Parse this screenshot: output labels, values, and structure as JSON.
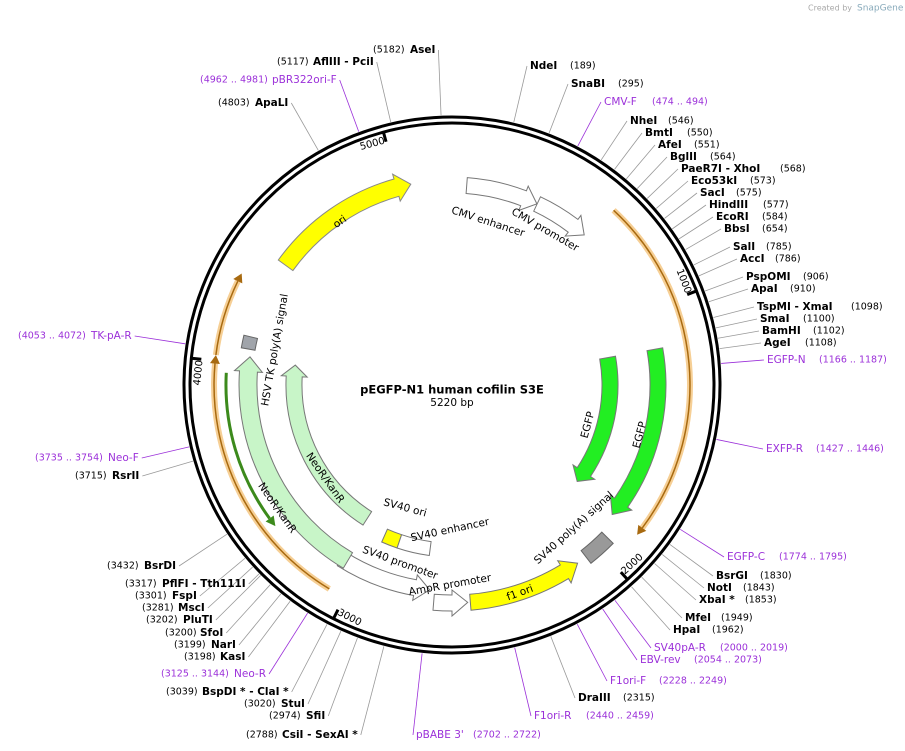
{
  "header": {
    "created_by": "Created by",
    "brand": "SnapGene"
  },
  "map": {
    "name": "pEGFP-N1 human cofilin S3E",
    "length": {
      "value": 5220,
      "label": "5220 bp"
    },
    "ruler": [
      1000,
      2000,
      3000,
      4000,
      5000
    ]
  },
  "features": [
    {
      "label": "ori"
    },
    {
      "label": "CMV enhancer"
    },
    {
      "label": "CMV promoter"
    },
    {
      "label": "EGFP"
    },
    {
      "label": "EGFP"
    },
    {
      "label": "SV40 poly(A) signal"
    },
    {
      "label": "f1 ori"
    },
    {
      "label": "AmpR promoter"
    },
    {
      "label": "SV40 promoter"
    },
    {
      "label": "SV40 ori"
    },
    {
      "label": "SV40 enhancer"
    },
    {
      "label": "NeoR/KanR"
    },
    {
      "label": "NeoR/KanR"
    },
    {
      "label": "HSV TK poly(A) signal"
    }
  ],
  "enzymes": [
    {
      "name": "AseI",
      "position": "(5182)"
    },
    {
      "name": "AflIII  - PciI",
      "position": "(5117)"
    },
    {
      "name": "ApaLI",
      "position": "(4803)"
    },
    {
      "name": "NdeI",
      "position": "(189)"
    },
    {
      "name": "SnaBI",
      "position": "(295)"
    },
    {
      "name": "NheI",
      "position": "(546)"
    },
    {
      "name": "BmtI",
      "position": "(550)"
    },
    {
      "name": "AfeI",
      "position": "(551)"
    },
    {
      "name": "BglII",
      "position": "(564)"
    },
    {
      "name": "PaeR7I  - XhoI",
      "position": "(568)"
    },
    {
      "name": "Eco53kI",
      "position": "(573)"
    },
    {
      "name": "SacI",
      "position": "(575)"
    },
    {
      "name": "HindIII",
      "position": "(577)"
    },
    {
      "name": "EcoRI",
      "position": "(584)"
    },
    {
      "name": "BbsI",
      "position": "(654)"
    },
    {
      "name": "SalI",
      "position": "(785)"
    },
    {
      "name": "AccI",
      "position": "(786)"
    },
    {
      "name": "PspOMI",
      "position": "(906)"
    },
    {
      "name": "ApaI",
      "position": "(910)"
    },
    {
      "name": "TspMI  - XmaI",
      "position": "(1098)"
    },
    {
      "name": "SmaI",
      "position": "(1100)"
    },
    {
      "name": "BamHI",
      "position": "(1102)"
    },
    {
      "name": "AgeI",
      "position": "(1108)"
    },
    {
      "name": "BsrGI",
      "position": "(1830)"
    },
    {
      "name": "NotI",
      "position": "(1843)"
    },
    {
      "name": "XbaI *",
      "position": "(1853)"
    },
    {
      "name": "MfeI",
      "position": "(1949)"
    },
    {
      "name": "HpaI",
      "position": "(1962)"
    },
    {
      "name": "DraIII",
      "position": "(2315)"
    },
    {
      "name": "CsiI  - SexAI *",
      "position": "(2788)"
    },
    {
      "name": "SfiI",
      "position": "(2974)"
    },
    {
      "name": "StuI",
      "position": "(3020)"
    },
    {
      "name": "BspDI *  - ClaI *",
      "position": "(3039)"
    },
    {
      "name": "KasI",
      "position": "(3198)"
    },
    {
      "name": "NarI",
      "position": "(3199)"
    },
    {
      "name": "SfoI",
      "position": "(3200)"
    },
    {
      "name": "PluTI",
      "position": "(3202)"
    },
    {
      "name": "MscI",
      "position": "(3281)"
    },
    {
      "name": "FspI",
      "position": "(3301)"
    },
    {
      "name": "PflFI  - Tth111I",
      "position": "(3317)"
    },
    {
      "name": "BsrDI",
      "position": "(3432)"
    },
    {
      "name": "RsrII",
      "position": "(3715)"
    }
  ],
  "primers": [
    {
      "name": "pBR322ori-F",
      "range": "(4962 .. 4981)"
    },
    {
      "name": "CMV-F",
      "range": "(474 .. 494)"
    },
    {
      "name": "EGFP-N",
      "range": "(1166 .. 1187)"
    },
    {
      "name": "EXFP-R",
      "range": "(1427 .. 1446)"
    },
    {
      "name": "EGFP-C",
      "range": "(1774 .. 1795)"
    },
    {
      "name": "SV40pA-R",
      "range": "(2000 .. 2019)"
    },
    {
      "name": "EBV-rev",
      "range": "(2054 .. 2073)"
    },
    {
      "name": "F1ori-F",
      "range": "(2228 .. 2249)"
    },
    {
      "name": "F1ori-R",
      "range": "(2440 .. 2459)"
    },
    {
      "name": "pBABE 3'",
      "range": "(2702 .. 2722)"
    },
    {
      "name": "Neo-R",
      "range": "(3125 .. 3144)"
    },
    {
      "name": "Neo-F",
      "range": "(3735 .. 3754)"
    },
    {
      "name": "TK-pA-R",
      "range": "(4053 .. 4072)"
    }
  ]
}
